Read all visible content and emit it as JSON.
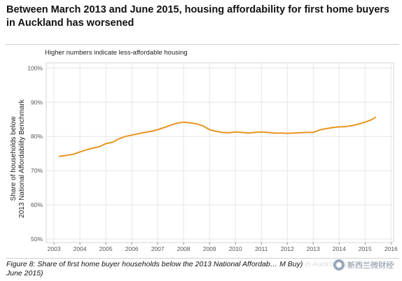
{
  "header": {
    "title": "Between March 2013 and June 2015, housing affordability for first home buyers in Auckland has worsened"
  },
  "caption": "Figure 8: Share of first home buyer households below the 2013 National Affordab… M Buy) in Auckland (March 2003 to June 2015)",
  "watermark": {
    "text": "新西兰微财经",
    "icon": "wechat-logo-icon"
  },
  "chart_data": {
    "type": "line",
    "subtitle": "Higher numbers indicate less-affordable housing",
    "ylabel_line1": "Share of households below",
    "ylabel_line2": "2013 National Affordability Benchmark",
    "xlabel": "",
    "xlim": [
      2002.7,
      2016.1
    ],
    "ylim": [
      49,
      101.5
    ],
    "x_ticks": [
      2003,
      2004,
      2005,
      2006,
      2007,
      2008,
      2009,
      2010,
      2011,
      2012,
      2013,
      2014,
      2015,
      2016
    ],
    "x_tick_labels": [
      "2003",
      "2004",
      "2005",
      "2006",
      "2007",
      "2008",
      "2009",
      "2010",
      "2011",
      "2012",
      "2013",
      "2014",
      "2015",
      "2016"
    ],
    "y_ticks": [
      50,
      60,
      70,
      80,
      90,
      100
    ],
    "y_tick_labels": [
      "50%",
      "60%",
      "70%",
      "80%",
      "90%",
      "100%"
    ],
    "grid": true,
    "line_color": "#E8941F",
    "series": [
      {
        "name": "",
        "x": [
          2003.2,
          2003.5,
          2003.75,
          2004.0,
          2004.25,
          2004.5,
          2004.75,
          2005.0,
          2005.25,
          2005.5,
          2005.75,
          2006.0,
          2006.25,
          2006.5,
          2006.75,
          2007.0,
          2007.25,
          2007.5,
          2007.75,
          2008.0,
          2008.25,
          2008.5,
          2008.75,
          2009.0,
          2009.25,
          2009.5,
          2009.75,
          2010.0,
          2010.25,
          2010.5,
          2010.75,
          2011.0,
          2011.25,
          2011.5,
          2011.75,
          2012.0,
          2012.25,
          2012.5,
          2012.75,
          2013.0,
          2013.25,
          2013.5,
          2013.75,
          2014.0,
          2014.25,
          2014.5,
          2014.75,
          2015.0,
          2015.25,
          2015.4
        ],
        "y": [
          74.2,
          74.5,
          74.8,
          75.5,
          76.1,
          76.6,
          77.0,
          77.9,
          78.3,
          79.3,
          80.0,
          80.4,
          80.8,
          81.2,
          81.5,
          82.0,
          82.6,
          83.3,
          83.9,
          84.2,
          84.0,
          83.7,
          83.1,
          82.0,
          81.5,
          81.2,
          81.1,
          81.3,
          81.2,
          81.0,
          81.2,
          81.3,
          81.2,
          81.0,
          81.0,
          80.9,
          81.0,
          81.1,
          81.2,
          81.2,
          81.9,
          82.3,
          82.6,
          82.8,
          82.9,
          83.2,
          83.6,
          84.2,
          84.9,
          85.6
        ]
      }
    ]
  }
}
